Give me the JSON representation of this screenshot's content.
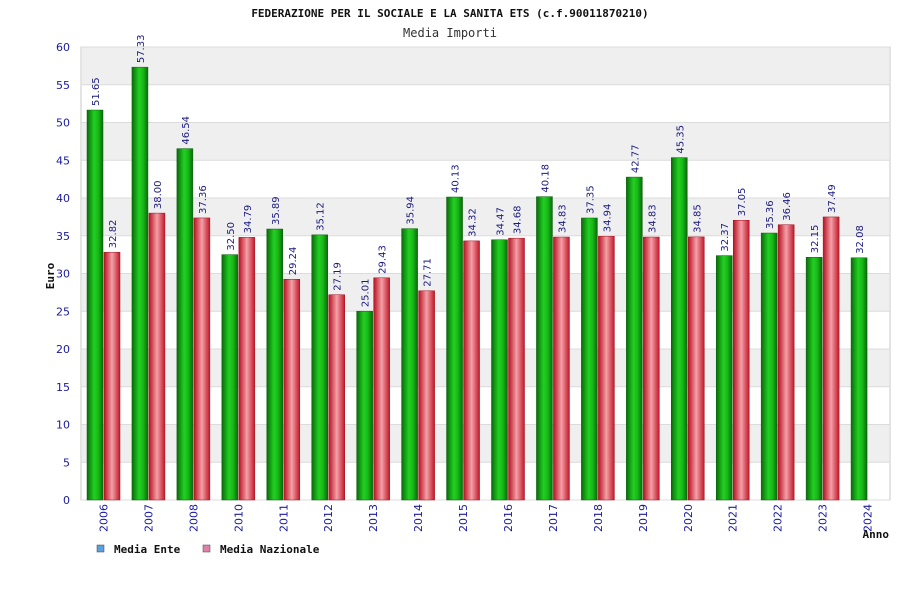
{
  "chart_data": {
    "type": "bar",
    "title": "FEDERAZIONE PER IL SOCIALE E LA SANITA ETS (c.f.90011870210)",
    "subtitle": "Media Importi",
    "ylabel": "Euro",
    "xlabel": "Anno",
    "ylim": [
      0,
      60
    ],
    "yticks": [
      "0",
      "5",
      "10",
      "15",
      "20",
      "25",
      "30",
      "35",
      "40",
      "45",
      "50",
      "55",
      "60"
    ],
    "grid": true,
    "legend_position": "bottom-left",
    "categories": [
      "2006",
      "2007",
      "2008",
      "2010",
      "2011",
      "2012",
      "2013",
      "2014",
      "2015",
      "2016",
      "2017",
      "2018",
      "2019",
      "2020",
      "2021",
      "2022",
      "2023",
      "2024"
    ],
    "series": [
      {
        "name": "Media Ente",
        "legend_color": "#5a9fe0",
        "color": "#10b010",
        "values": [
          51.65,
          57.33,
          46.54,
          32.5,
          35.89,
          35.12,
          25.01,
          35.94,
          40.13,
          34.47,
          40.18,
          37.35,
          42.77,
          45.35,
          32.37,
          35.36,
          32.15,
          32.08
        ],
        "labels": [
          "51.65",
          "57.33",
          "46.54",
          "32.50",
          "35.89",
          "35.12",
          "25.01",
          "35.94",
          "40.13",
          "34.47",
          "40.18",
          "37.35",
          "42.77",
          "45.35",
          "32.37",
          "35.36",
          "32.15",
          "32.08"
        ]
      },
      {
        "name": "Media Nazionale",
        "legend_color": "#e080a8",
        "color": "#e02030",
        "values": [
          32.82,
          38.0,
          37.36,
          34.79,
          29.24,
          27.19,
          29.43,
          27.71,
          34.32,
          34.68,
          34.83,
          34.94,
          34.83,
          34.85,
          37.05,
          36.46,
          37.49,
          null
        ],
        "labels": [
          "32.82",
          "38.00",
          "37.36",
          "34.79",
          "29.24",
          "27.19",
          "29.43",
          "27.71",
          "34.32",
          "34.68",
          "34.83",
          "34.94",
          "34.83",
          "34.85",
          "37.05",
          "36.46",
          "37.49",
          ""
        ]
      }
    ]
  }
}
